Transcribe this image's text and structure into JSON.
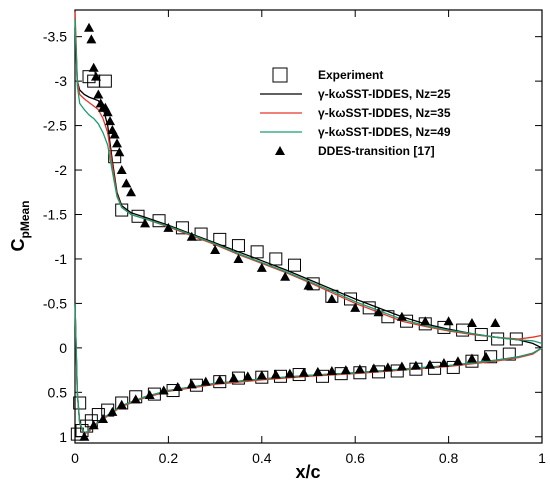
{
  "chart_data": {
    "type": "line",
    "xlabel": "x/c",
    "ylabel_main": "C",
    "ylabel_sub": "pMean",
    "xlim": [
      0,
      1
    ],
    "ylim": [
      -3.8,
      1.07
    ],
    "y_inverted": true,
    "x_ticks": [
      0,
      0.2,
      0.4,
      0.6,
      0.8,
      1
    ],
    "x_tick_labels": [
      "0",
      "0.2",
      "0.4",
      "0.6",
      "0.8",
      "1"
    ],
    "y_ticks": [
      -3.5,
      -3,
      -2.5,
      -2,
      -1.5,
      -1,
      -0.5,
      0,
      0.5,
      1
    ],
    "y_tick_labels": [
      "-3.5",
      "-3",
      "-2.5",
      "-2",
      "-1.5",
      "-1",
      "-0.5",
      "0",
      "0.5",
      "1"
    ],
    "legend_position": "top-right",
    "series": [
      {
        "name": "Experiment",
        "marker": "open-square",
        "color": "#000000",
        "x": [
          0.03,
          0.04,
          0.065,
          0.085,
          0.1,
          0.135,
          0.18,
          0.23,
          0.27,
          0.31,
          0.35,
          0.39,
          0.43,
          0.47,
          0.51,
          0.55,
          0.59,
          0.63,
          0.67,
          0.71,
          0.75,
          0.79,
          0.83,
          0.87,
          0.905,
          0.945,
          0.01,
          0.005,
          0.015,
          0.025,
          0.035,
          0.05,
          0.07,
          0.1,
          0.13,
          0.17,
          0.21,
          0.26,
          0.31,
          0.35,
          0.4,
          0.44,
          0.48,
          0.53,
          0.57,
          0.61,
          0.65,
          0.69,
          0.73,
          0.77,
          0.81,
          0.85,
          0.89,
          0.93
        ],
        "y": [
          -3.05,
          -3.0,
          -3.0,
          -2.15,
          -1.55,
          -1.48,
          -1.43,
          -1.35,
          -1.28,
          -1.22,
          -1.15,
          -1.08,
          -1.0,
          -0.93,
          -0.72,
          -0.58,
          -0.55,
          -0.45,
          -0.35,
          -0.3,
          -0.27,
          -0.23,
          -0.2,
          -0.15,
          -0.1,
          -0.1,
          0.62,
          0.97,
          0.93,
          0.88,
          0.82,
          0.75,
          0.7,
          0.62,
          0.55,
          0.52,
          0.48,
          0.42,
          0.38,
          0.34,
          0.33,
          0.32,
          0.3,
          0.32,
          0.29,
          0.28,
          0.27,
          0.26,
          0.24,
          0.23,
          0.22,
          0.15,
          0.1,
          0.07
        ]
      },
      {
        "name": "γ-kωSST-IDDES, Nz=25",
        "color": "#000000",
        "x": [
          0.0,
          0.002,
          0.005,
          0.01,
          0.02,
          0.03,
          0.04,
          0.05,
          0.06,
          0.07,
          0.08,
          0.09,
          0.1,
          0.12,
          0.15,
          0.2,
          0.25,
          0.3,
          0.35,
          0.4,
          0.45,
          0.5,
          0.55,
          0.6,
          0.65,
          0.7,
          0.75,
          0.8,
          0.85,
          0.9,
          0.95,
          0.98,
          1.0
        ],
        "y": [
          -3.6,
          -3.4,
          -3.0,
          -2.9,
          -2.85,
          -2.82,
          -2.8,
          -2.78,
          -2.7,
          -2.5,
          -2.1,
          -1.75,
          -1.6,
          -1.52,
          -1.47,
          -1.38,
          -1.28,
          -1.18,
          -1.08,
          -0.98,
          -0.88,
          -0.77,
          -0.66,
          -0.55,
          -0.45,
          -0.35,
          -0.27,
          -0.21,
          -0.16,
          -0.12,
          -0.09,
          -0.05,
          0.0
        ]
      },
      {
        "name": "γ-kωSST-IDDES, Nz=35",
        "color": "#e8352b",
        "x": [
          0.0,
          0.002,
          0.005,
          0.01,
          0.02,
          0.03,
          0.04,
          0.05,
          0.06,
          0.07,
          0.08,
          0.09,
          0.1,
          0.12,
          0.15,
          0.2,
          0.25,
          0.3,
          0.35,
          0.4,
          0.45,
          0.5,
          0.55,
          0.6,
          0.65,
          0.7,
          0.75,
          0.8,
          0.85,
          0.9,
          0.95,
          0.98,
          1.0
        ],
        "y": [
          -3.78,
          -3.5,
          -3.0,
          -2.85,
          -2.8,
          -2.76,
          -2.72,
          -2.68,
          -2.58,
          -2.42,
          -2.05,
          -1.72,
          -1.58,
          -1.5,
          -1.45,
          -1.36,
          -1.26,
          -1.16,
          -1.05,
          -0.95,
          -0.85,
          -0.74,
          -0.62,
          -0.5,
          -0.4,
          -0.3,
          -0.24,
          -0.19,
          -0.15,
          -0.12,
          -0.1,
          -0.12,
          -0.14
        ]
      },
      {
        "name": "γ-kωSST-IDDES, Nz=49",
        "color": "#1a9e6e",
        "x": [
          0.0,
          0.002,
          0.005,
          0.01,
          0.02,
          0.03,
          0.04,
          0.05,
          0.06,
          0.07,
          0.08,
          0.09,
          0.1,
          0.12,
          0.15,
          0.2,
          0.25,
          0.3,
          0.35,
          0.4,
          0.45,
          0.5,
          0.55,
          0.6,
          0.65,
          0.7,
          0.75,
          0.8,
          0.85,
          0.9,
          0.95,
          0.98,
          1.0
        ],
        "y": [
          -3.7,
          -3.4,
          -2.95,
          -2.75,
          -2.68,
          -2.62,
          -2.58,
          -2.52,
          -2.42,
          -2.28,
          -1.98,
          -1.7,
          -1.58,
          -1.5,
          -1.45,
          -1.37,
          -1.27,
          -1.17,
          -1.06,
          -0.96,
          -0.86,
          -0.75,
          -0.64,
          -0.52,
          -0.42,
          -0.32,
          -0.25,
          -0.2,
          -0.16,
          -0.12,
          -0.09,
          -0.08,
          -0.05
        ]
      },
      {
        "name": "γ-kωSST-IDDES, Nz=25 (lower)",
        "color": "#000000",
        "x": [
          0.0,
          0.005,
          0.01,
          0.02,
          0.03,
          0.05,
          0.08,
          0.1,
          0.15,
          0.2,
          0.3,
          0.4,
          0.5,
          0.6,
          0.7,
          0.8,
          0.9,
          0.95,
          0.98,
          1.0
        ],
        "y": [
          -0.5,
          0.5,
          0.85,
          0.97,
          0.93,
          0.83,
          0.72,
          0.65,
          0.55,
          0.48,
          0.4,
          0.35,
          0.31,
          0.28,
          0.24,
          0.2,
          0.14,
          0.1,
          0.06,
          0.0
        ]
      },
      {
        "name": "γ-kωSST-IDDES, Nz=35 (lower)",
        "color": "#e8352b",
        "x": [
          0.0,
          0.005,
          0.01,
          0.02,
          0.03,
          0.05,
          0.08,
          0.1,
          0.15,
          0.2,
          0.3,
          0.4,
          0.5,
          0.6,
          0.7,
          0.8,
          0.9,
          0.95,
          0.98,
          1.0
        ],
        "y": [
          -0.5,
          0.5,
          0.85,
          0.97,
          0.94,
          0.84,
          0.73,
          0.66,
          0.56,
          0.49,
          0.41,
          0.36,
          0.32,
          0.29,
          0.25,
          0.21,
          0.15,
          0.11,
          0.07,
          0.0
        ]
      },
      {
        "name": "γ-kωSST-IDDES, Nz=49 (lower)",
        "color": "#1a9e6e",
        "x": [
          0.0,
          0.005,
          0.01,
          0.02,
          0.03,
          0.05,
          0.08,
          0.1,
          0.15,
          0.2,
          0.3,
          0.4,
          0.5,
          0.6,
          0.7,
          0.8,
          0.9,
          0.95,
          0.98,
          1.0
        ],
        "y": [
          -0.5,
          0.5,
          0.84,
          0.96,
          0.93,
          0.83,
          0.72,
          0.65,
          0.55,
          0.48,
          0.4,
          0.35,
          0.31,
          0.28,
          0.24,
          0.2,
          0.14,
          0.1,
          0.06,
          0.0
        ]
      },
      {
        "name": "DDES-transition [17]",
        "marker": "filled-triangle",
        "color": "#000000",
        "x": [
          0.03,
          0.035,
          0.04,
          0.045,
          0.05,
          0.055,
          0.06,
          0.065,
          0.07,
          0.075,
          0.08,
          0.085,
          0.09,
          0.095,
          0.1,
          0.11,
          0.12,
          0.15,
          0.2,
          0.25,
          0.3,
          0.35,
          0.4,
          0.45,
          0.5,
          0.55,
          0.6,
          0.65,
          0.7,
          0.75,
          0.8,
          0.85,
          0.9,
          0.02,
          0.04,
          0.06,
          0.08,
          0.1,
          0.13,
          0.16,
          0.19,
          0.22,
          0.25,
          0.28,
          0.31,
          0.34,
          0.37,
          0.4,
          0.43,
          0.46,
          0.49,
          0.52,
          0.55,
          0.58,
          0.61,
          0.64,
          0.67,
          0.7,
          0.73,
          0.76,
          0.79,
          0.82,
          0.85,
          0.88
        ],
        "y": [
          -3.6,
          -3.47,
          -3.15,
          -3.05,
          -2.85,
          -2.75,
          -2.7,
          -2.7,
          -2.65,
          -2.55,
          -2.45,
          -2.4,
          -2.3,
          -2.2,
          -2.0,
          -1.85,
          -1.75,
          -1.4,
          -1.35,
          -1.25,
          -1.1,
          -1.0,
          -0.9,
          -0.8,
          -0.7,
          -0.55,
          -0.45,
          -0.4,
          -0.35,
          -0.3,
          -0.3,
          -0.28,
          -0.28,
          1.0,
          0.87,
          0.8,
          0.72,
          0.64,
          0.58,
          0.53,
          0.48,
          0.44,
          0.41,
          0.38,
          0.36,
          0.34,
          0.32,
          0.31,
          0.3,
          0.29,
          0.28,
          0.27,
          0.26,
          0.25,
          0.24,
          0.23,
          0.22,
          0.21,
          0.2,
          0.19,
          0.17,
          0.15,
          0.12,
          0.1
        ]
      }
    ],
    "legend": [
      {
        "label": "Experiment",
        "kind": "open-square",
        "color": "#000000"
      },
      {
        "label": "γ-kωSST-IDDES, Nz=25",
        "kind": "line",
        "color": "#000000"
      },
      {
        "label": "γ-kωSST-IDDES, Nz=35",
        "kind": "line",
        "color": "#e8352b"
      },
      {
        "label": "γ-kωSST-IDDES, Nz=49",
        "kind": "line",
        "color": "#1a9e6e"
      },
      {
        "label": "DDES-transition [17]",
        "kind": "filled-triangle",
        "color": "#000000"
      }
    ]
  }
}
